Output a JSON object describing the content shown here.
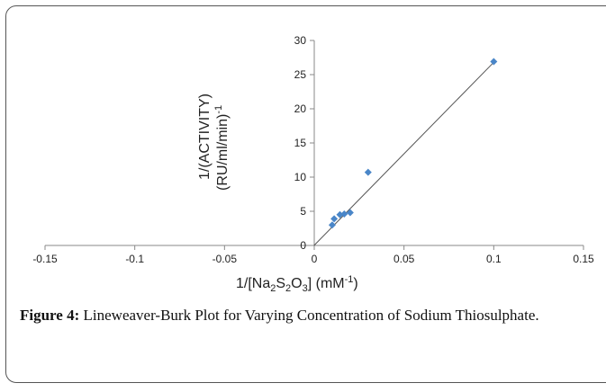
{
  "chart_data": {
    "type": "scatter",
    "x": [
      0.01,
      0.0111,
      0.0143,
      0.0167,
      0.02,
      0.03,
      0.1
    ],
    "y": [
      3.0,
      3.9,
      4.5,
      4.6,
      4.8,
      10.7,
      26.9
    ],
    "fit_line": {
      "x": [
        -0.0001,
        0.1
      ],
      "y": [
        -0.3,
        26.8
      ]
    },
    "xlim": [
      -0.15,
      0.15
    ],
    "ylim": [
      0,
      30
    ],
    "xticks": [
      "-0.15",
      "-0.1",
      "-0.05",
      "0",
      "0.05",
      "0.1",
      "0.15"
    ],
    "yticks": [
      "0",
      "5",
      "10",
      "15",
      "20",
      "25",
      "30"
    ],
    "ylabel_line1": "1/(ACTIVITY)",
    "ylabel_line2": "(RU/ml/min)",
    "ylabel_sup": "-1",
    "xlabel": {
      "p1": "1/[Na",
      "s1": "2",
      "p2": "S",
      "s2": "2",
      "p3": "O",
      "s3": "3",
      "p4": "] (mM",
      "sup": "-1",
      "p5": ")"
    },
    "marker_color": "#4a86c8",
    "line_color": "#555555"
  },
  "caption": {
    "label": "Figure 4:",
    "text": " Lineweaver-Burk Plot for Varying Concentration of Sodium Thiosulphate."
  }
}
